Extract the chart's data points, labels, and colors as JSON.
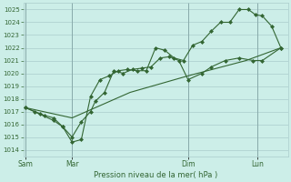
{
  "xlabel": "Pression niveau de la mer( hPa )",
  "bg_color": "#cceee8",
  "grid_color": "#aacccc",
  "line_color": "#336633",
  "ylim": [
    1013.5,
    1025.5
  ],
  "yticks": [
    1014,
    1015,
    1016,
    1017,
    1018,
    1019,
    1020,
    1021,
    1022,
    1023,
    1024,
    1025
  ],
  "xtick_labels": [
    "Sam",
    "Mar",
    "Dim",
    "Lun"
  ],
  "xtick_positions": [
    0,
    2,
    7,
    10
  ],
  "xlim": [
    -0.1,
    11.3
  ],
  "series1": [
    [
      0.0,
      1017.3
    ],
    [
      0.4,
      1017.0
    ],
    [
      0.8,
      1016.7
    ],
    [
      1.2,
      1016.5
    ],
    [
      1.6,
      1015.8
    ],
    [
      2.0,
      1014.6
    ],
    [
      2.4,
      1014.8
    ],
    [
      2.8,
      1018.2
    ],
    [
      3.2,
      1019.5
    ],
    [
      3.6,
      1019.8
    ],
    [
      4.0,
      1020.2
    ],
    [
      4.4,
      1020.3
    ],
    [
      4.8,
      1020.2
    ],
    [
      5.2,
      1020.2
    ],
    [
      5.6,
      1022.0
    ],
    [
      6.0,
      1021.8
    ],
    [
      6.4,
      1021.2
    ],
    [
      6.8,
      1021.0
    ],
    [
      7.2,
      1022.2
    ],
    [
      7.6,
      1022.5
    ],
    [
      8.0,
      1023.3
    ],
    [
      8.4,
      1024.0
    ],
    [
      8.8,
      1024.0
    ],
    [
      9.2,
      1025.0
    ],
    [
      9.6,
      1025.0
    ],
    [
      9.9,
      1024.6
    ],
    [
      10.2,
      1024.5
    ],
    [
      10.6,
      1023.7
    ],
    [
      11.0,
      1022.0
    ]
  ],
  "series2": [
    [
      0.0,
      1017.3
    ],
    [
      0.6,
      1016.8
    ],
    [
      1.2,
      1016.3
    ],
    [
      1.6,
      1015.8
    ],
    [
      2.0,
      1015.0
    ],
    [
      2.4,
      1016.2
    ],
    [
      2.8,
      1017.0
    ],
    [
      3.0,
      1017.8
    ],
    [
      3.4,
      1018.5
    ],
    [
      3.8,
      1020.2
    ],
    [
      4.2,
      1020.0
    ],
    [
      4.6,
      1020.3
    ],
    [
      5.0,
      1020.4
    ],
    [
      5.4,
      1020.5
    ],
    [
      5.8,
      1021.2
    ],
    [
      6.2,
      1021.3
    ],
    [
      6.6,
      1021.0
    ],
    [
      7.0,
      1019.5
    ],
    [
      7.6,
      1020.0
    ],
    [
      8.0,
      1020.5
    ],
    [
      8.6,
      1021.0
    ],
    [
      9.2,
      1021.2
    ],
    [
      9.8,
      1021.0
    ],
    [
      10.2,
      1021.0
    ],
    [
      11.0,
      1022.0
    ]
  ],
  "series3": [
    [
      0.0,
      1017.3
    ],
    [
      2.0,
      1016.5
    ],
    [
      4.5,
      1018.5
    ],
    [
      7.0,
      1019.8
    ],
    [
      9.5,
      1021.0
    ],
    [
      11.0,
      1022.0
    ]
  ]
}
